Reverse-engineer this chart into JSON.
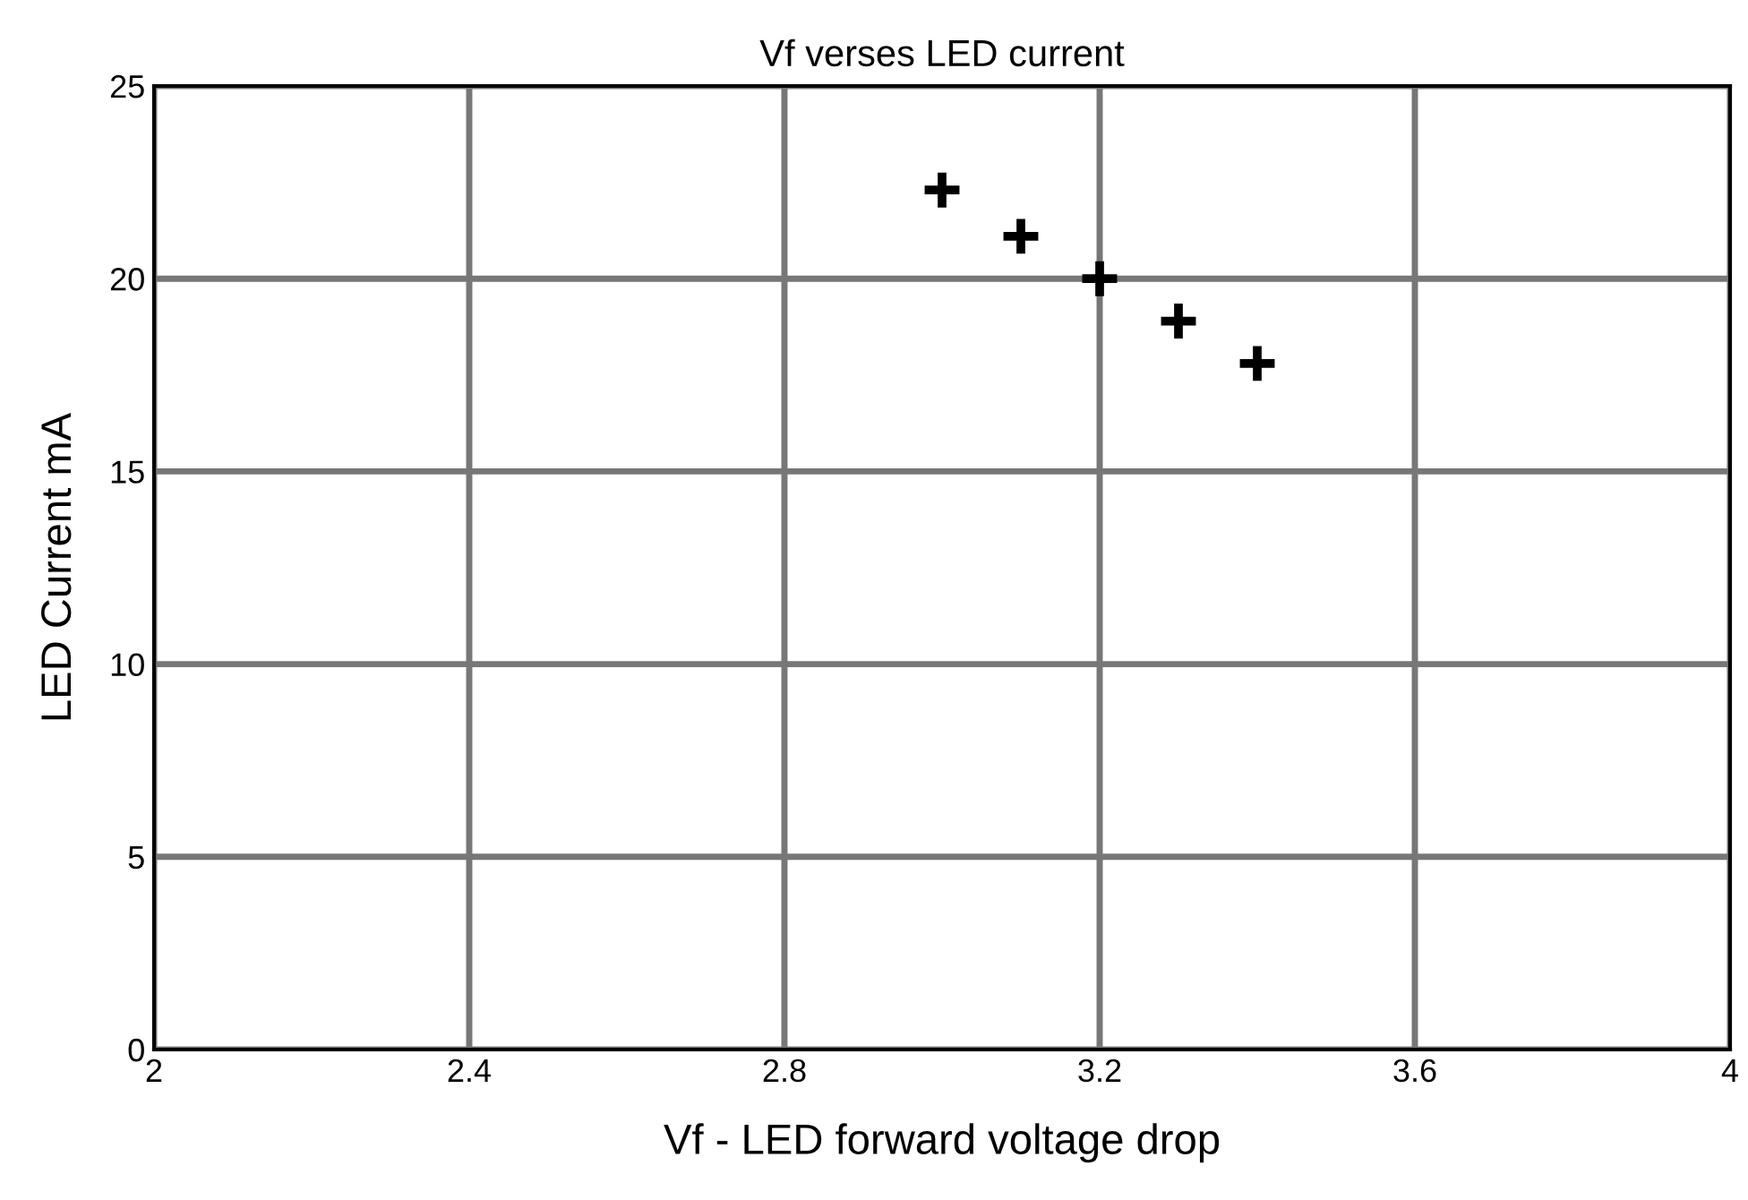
{
  "chart_data": {
    "type": "scatter",
    "title": "Vf verses LED current",
    "xlabel": "Vf - LED forward voltage drop",
    "ylabel": "LED Current mA",
    "x": [
      3.0,
      3.1,
      3.2,
      3.3,
      3.4
    ],
    "series": [
      {
        "color": "#000000",
        "values": [
          22.3,
          21.1,
          20.0,
          18.9,
          17.8
        ]
      }
    ],
    "xlim": [
      2,
      4
    ],
    "xticks": [
      2,
      2.4,
      2.8,
      3.2,
      3.6,
      4
    ],
    "ylim": [
      0,
      25
    ],
    "yticks": [
      0,
      5,
      10,
      15,
      20,
      25
    ],
    "grid": true,
    "marker": "cross",
    "legend": false
  }
}
